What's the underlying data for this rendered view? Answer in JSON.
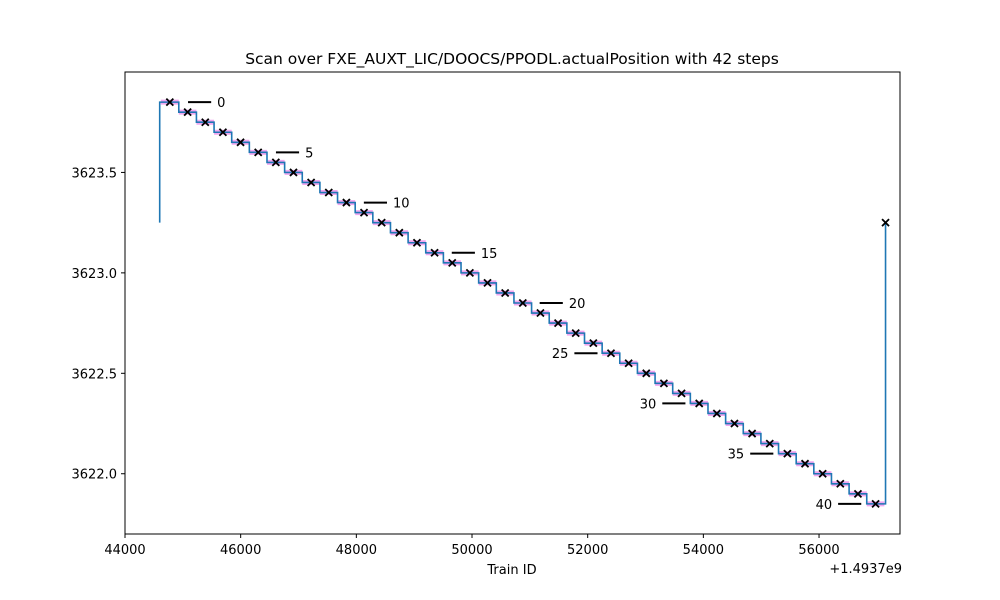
{
  "chart_data": {
    "type": "line",
    "title": "Scan over FXE_AUXT_LIC/DOOCS/PPODL.actualPosition with 42 steps",
    "xlabel": "Train ID",
    "ylabel": "",
    "x_offset_label": "+1.4937e9",
    "xlim": [
      44000,
      57400
    ],
    "ylim": [
      3621.7,
      3624.0
    ],
    "x_ticks": [
      {
        "value": 44000,
        "label": "44000"
      },
      {
        "value": 46000,
        "label": "46000"
      },
      {
        "value": 48000,
        "label": "48000"
      },
      {
        "value": 50000,
        "label": "50000"
      },
      {
        "value": 52000,
        "label": "52000"
      },
      {
        "value": 54000,
        "label": "54000"
      },
      {
        "value": 56000,
        "label": "56000"
      }
    ],
    "y_ticks": [
      {
        "value": 3622.0,
        "label": "3622.0"
      },
      {
        "value": 3622.5,
        "label": "3622.5"
      },
      {
        "value": 3623.0,
        "label": "3623.0"
      },
      {
        "value": 3623.5,
        "label": "3623.5"
      }
    ],
    "grid": false,
    "colors": {
      "step_line": "#1f77b4",
      "step_highlight": "#f0a6f0",
      "marker": "#000000",
      "annotation_line": "#000000"
    },
    "series": [
      {
        "type": "step",
        "first_x": 44600,
        "first_value": 3623.25,
        "last_x": 57150,
        "last_value": 3623.25,
        "step_starts": [
          44620,
          44930,
          45235,
          45540,
          45845,
          46150,
          46455,
          46760,
          47065,
          47370,
          47675,
          47980,
          48285,
          48590,
          48895,
          49200,
          49505,
          49810,
          50115,
          50420,
          50725,
          51030,
          51335,
          51640,
          51945,
          52250,
          52555,
          52860,
          53165,
          53470,
          53775,
          54080,
          54385,
          54690,
          54995,
          55300,
          55605,
          55910,
          56215,
          56520,
          56825
        ],
        "step_ends": [
          57130
        ],
        "values": [
          3623.85,
          3623.8,
          3623.75,
          3623.7,
          3623.65,
          3623.6,
          3623.55,
          3623.5,
          3623.45,
          3623.4,
          3623.35,
          3623.3,
          3623.25,
          3623.2,
          3623.15,
          3623.1,
          3623.05,
          3623.0,
          3622.95,
          3622.9,
          3622.85,
          3622.8,
          3622.75,
          3622.7,
          3622.65,
          3622.6,
          3622.55,
          3622.5,
          3622.45,
          3622.4,
          3622.35,
          3622.3,
          3622.25,
          3622.2,
          3622.15,
          3622.1,
          3622.05,
          3622.0,
          3621.95,
          3621.9,
          3621.85
        ]
      },
      {
        "type": "markers",
        "marker": "x",
        "x": [
          44775,
          45083,
          45388,
          45693,
          45998,
          46303,
          46608,
          46913,
          47218,
          47523,
          47828,
          48133,
          48438,
          48743,
          49048,
          49353,
          49658,
          49963,
          50268,
          50573,
          50878,
          51183,
          51488,
          51793,
          52098,
          52403,
          52708,
          53013,
          53318,
          53623,
          53928,
          54233,
          54538,
          54843,
          55148,
          55453,
          55758,
          56063,
          56368,
          56673,
          56978,
          57150
        ],
        "values": [
          3623.85,
          3623.8,
          3623.75,
          3623.7,
          3623.65,
          3623.6,
          3623.55,
          3623.5,
          3623.45,
          3623.4,
          3623.35,
          3623.3,
          3623.25,
          3623.2,
          3623.15,
          3623.1,
          3623.05,
          3623.0,
          3622.95,
          3622.9,
          3622.85,
          3622.8,
          3622.75,
          3622.7,
          3622.65,
          3622.6,
          3622.55,
          3622.5,
          3622.45,
          3622.4,
          3622.35,
          3622.3,
          3622.25,
          3622.2,
          3622.15,
          3622.1,
          3622.05,
          3622.0,
          3621.95,
          3621.9,
          3621.85,
          3623.25
        ]
      }
    ],
    "annotations": [
      {
        "label": "0",
        "line_x": [
          45090,
          45490
        ],
        "value": 3623.85,
        "side": "right"
      },
      {
        "label": "5",
        "line_x": [
          46610,
          47010
        ],
        "value": 3623.6,
        "side": "right"
      },
      {
        "label": "10",
        "line_x": [
          48130,
          48530
        ],
        "value": 3623.35,
        "side": "right"
      },
      {
        "label": "15",
        "line_x": [
          49650,
          50050
        ],
        "value": 3623.1,
        "side": "right"
      },
      {
        "label": "20",
        "line_x": [
          51170,
          51570
        ],
        "value": 3622.85,
        "side": "right"
      },
      {
        "label": "25",
        "line_x": [
          51770,
          52170
        ],
        "value": 3622.6,
        "side": "left"
      },
      {
        "label": "30",
        "line_x": [
          53290,
          53690
        ],
        "value": 3622.35,
        "side": "left"
      },
      {
        "label": "35",
        "line_x": [
          54810,
          55210
        ],
        "value": 3622.1,
        "side": "left"
      },
      {
        "label": "40",
        "line_x": [
          56330,
          56730
        ],
        "value": 3621.85,
        "side": "left"
      }
    ]
  }
}
